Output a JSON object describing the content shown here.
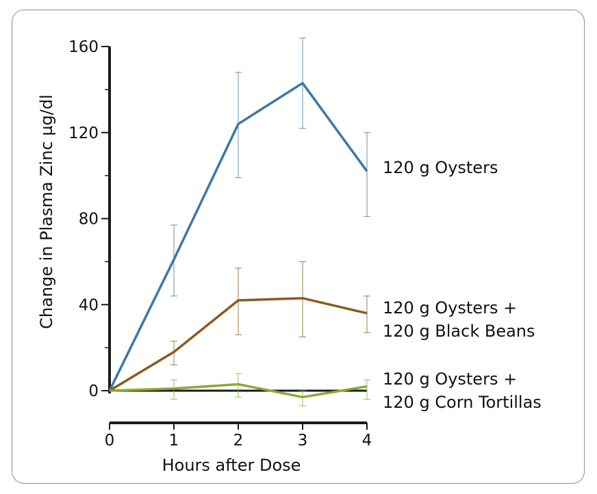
{
  "chart_data": {
    "type": "line",
    "title": "",
    "xlabel": "Hours after Dose",
    "ylabel": "Change in Plasma Zinc µg/dl",
    "x": [
      0,
      1,
      2,
      3,
      4
    ],
    "xticks": [
      "0",
      "1",
      "2",
      "3",
      "4"
    ],
    "yticks": [
      "0",
      "40",
      "80",
      "120",
      "160"
    ],
    "xlim": [
      0,
      4
    ],
    "ylim": [
      0,
      160
    ],
    "grid": false,
    "legend": "direct labels at right end of lines",
    "series": [
      {
        "name": [
          "120 g Oysters"
        ],
        "color": "#3d77a5",
        "values": [
          0,
          61,
          124,
          143,
          102
        ],
        "error_bars": [
          [
            0,
            0
          ],
          [
            44,
            77
          ],
          [
            99,
            148
          ],
          [
            122,
            164
          ],
          [
            81,
            120
          ]
        ]
      },
      {
        "name": [
          "120 g Oysters +",
          "120 g Black Beans"
        ],
        "color": "#8a5a1e",
        "values": [
          0,
          18,
          42,
          43,
          36
        ],
        "error_bars": [
          [
            0,
            0
          ],
          [
            12,
            23
          ],
          [
            26,
            57
          ],
          [
            25,
            60
          ],
          [
            27,
            44
          ]
        ]
      },
      {
        "name": [
          "120 g Oysters +",
          "120 g Corn Tortillas"
        ],
        "color": "#86ac2c",
        "values": [
          0,
          1,
          3,
          -3,
          2
        ],
        "error_bars": [
          [
            0,
            0
          ],
          [
            -4,
            5
          ],
          [
            -3,
            8
          ],
          [
            -7,
            0
          ],
          [
            -4,
            5
          ]
        ]
      }
    ]
  }
}
